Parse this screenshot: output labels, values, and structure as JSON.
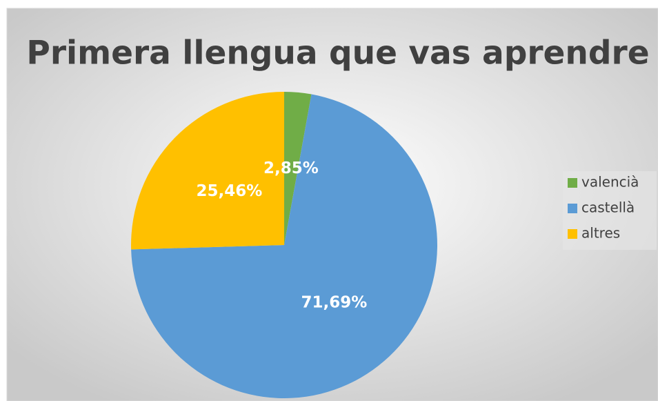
{
  "chart_data": {
    "type": "pie",
    "title": "Primera llengua que vas aprendre",
    "categories": [
      "valencià",
      "castellà",
      "altres"
    ],
    "values": [
      2.85,
      71.69,
      25.46
    ],
    "value_labels": [
      "2,85%",
      "71,69%",
      "25,46%"
    ],
    "colors": [
      "#70ad47",
      "#5b9bd5",
      "#ffc000"
    ],
    "legend": "right"
  }
}
